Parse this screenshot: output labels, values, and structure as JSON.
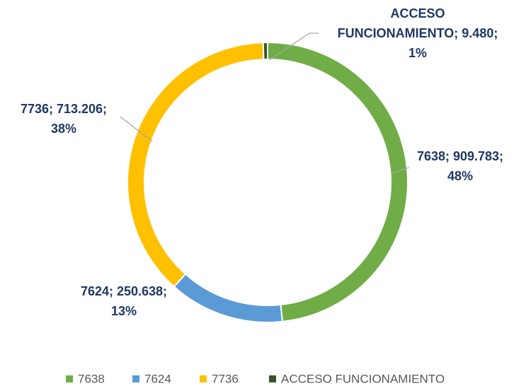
{
  "chart_data": {
    "type": "donut",
    "categories": [
      "7638",
      "7624",
      "7736",
      "ACCESO FUNCIONAMIENTO"
    ],
    "values": [
      909783,
      250638,
      713206,
      9480
    ],
    "value_labels": [
      [
        "7638; 909.783;",
        "48%"
      ],
      [
        "7624; 250.638;",
        "13%"
      ],
      [
        "7736; 713.206;",
        "38%"
      ],
      [
        "ACCESO",
        "FUNCIONAMIENTO; 9.480;",
        "1%"
      ]
    ],
    "colors": [
      "#70ad47",
      "#5b9bd5",
      "#ffc000",
      "#375623"
    ],
    "legend": "bottom"
  }
}
